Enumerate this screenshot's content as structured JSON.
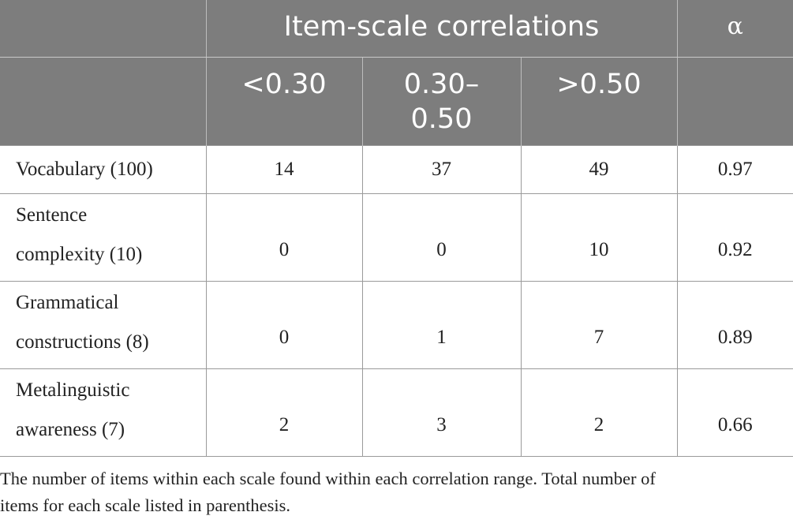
{
  "table": {
    "group_header": "Item-scale correlations",
    "alpha_header": "α",
    "range_headers": [
      "<0.30",
      "0.30–",
      "0.50",
      ">0.50"
    ],
    "rows": [
      {
        "label_line1": "Vocabulary (100)",
        "label_line2": "",
        "lt030": "14",
        "mid": "37",
        "gt050": "49",
        "alpha": "0.97"
      },
      {
        "label_line1": "Sentence",
        "label_line2": "complexity (10)",
        "lt030": "0",
        "mid": "0",
        "gt050": "10",
        "alpha": "0.92"
      },
      {
        "label_line1": "Grammatical",
        "label_line2": "constructions (8)",
        "lt030": "0",
        "mid": "1",
        "gt050": "7",
        "alpha": "0.89"
      },
      {
        "label_line1": "Metalinguistic",
        "label_line2": "awareness (7)",
        "lt030": "2",
        "mid": "3",
        "gt050": "2",
        "alpha": "0.66"
      }
    ]
  },
  "note": {
    "line1": "The number of items within each scale found within each correlation range. Total number of",
    "line2": "items for each scale listed in parenthesis."
  }
}
